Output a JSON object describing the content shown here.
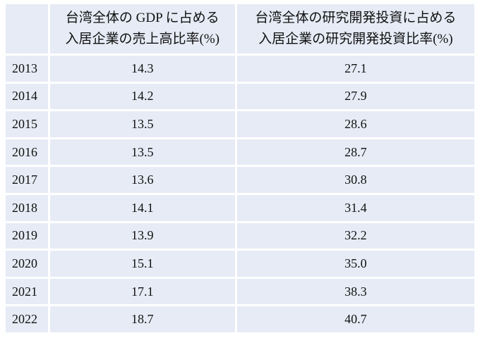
{
  "table": {
    "header": {
      "year": "",
      "gdp_share": [
        "台湾全体の GDP に占める",
        "入居企業の売上高比率(%)"
      ],
      "rd_share": [
        "台湾全体の研究開発投資に占める",
        "入居企業の研究開発投資比率(%)"
      ]
    },
    "rows": [
      {
        "year": "2013",
        "gdp_share": "14.3",
        "rd_share": "27.1"
      },
      {
        "year": "2014",
        "gdp_share": "14.2",
        "rd_share": "27.9"
      },
      {
        "year": "2015",
        "gdp_share": "13.5",
        "rd_share": "28.6"
      },
      {
        "year": "2016",
        "gdp_share": "13.5",
        "rd_share": "28.7"
      },
      {
        "year": "2017",
        "gdp_share": "13.6",
        "rd_share": "30.8"
      },
      {
        "year": "2018",
        "gdp_share": "14.1",
        "rd_share": "31.4"
      },
      {
        "year": "2019",
        "gdp_share": "13.9",
        "rd_share": "32.2"
      },
      {
        "year": "2020",
        "gdp_share": "15.1",
        "rd_share": "35.0"
      },
      {
        "year": "2021",
        "gdp_share": "17.1",
        "rd_share": "38.3"
      },
      {
        "year": "2022",
        "gdp_share": "18.7",
        "rd_share": "40.7"
      }
    ]
  },
  "colors": {
    "cell_background": "#e6ebf5",
    "text": "#111111",
    "page_background": "#ffffff"
  }
}
